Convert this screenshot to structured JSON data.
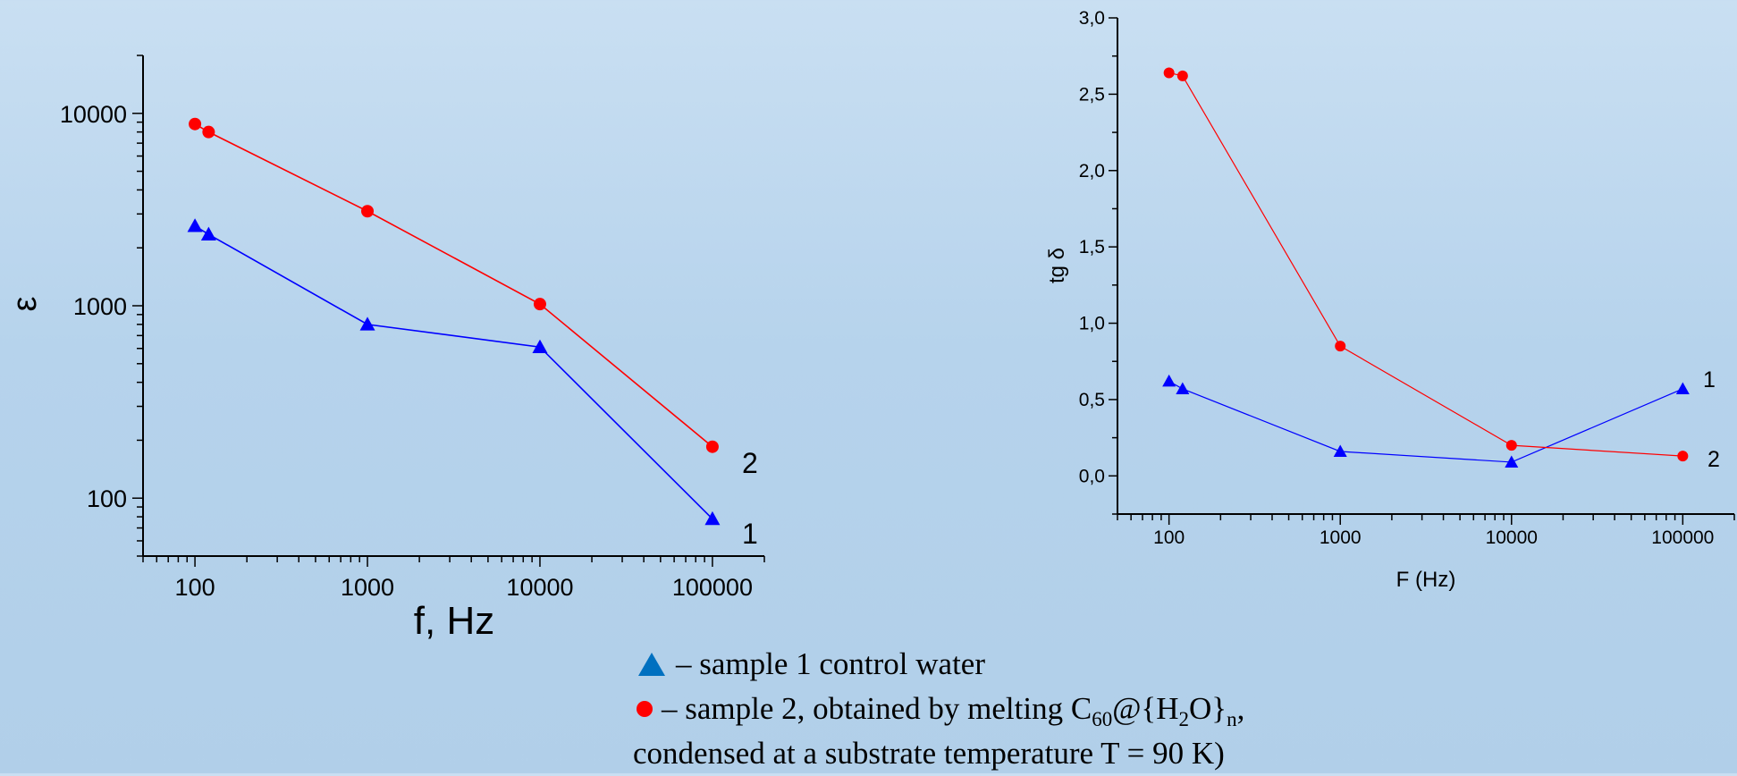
{
  "chart_data": [
    {
      "type": "line",
      "xscale": "log",
      "yscale": "log",
      "xlabel": "f, Hz",
      "ylabel": "ε",
      "xlim": [
        50,
        200000
      ],
      "ylim": [
        50,
        20000
      ],
      "xticks": [
        "100",
        "1000",
        "10000",
        "100000"
      ],
      "yticks": [
        "100",
        "1000",
        "10000"
      ],
      "series": [
        {
          "label": "1",
          "color": "#0000ff",
          "marker": "triangle",
          "x": [
            100,
            120,
            1000,
            10000,
            100000
          ],
          "y": [
            2600,
            2350,
            800,
            610,
            78
          ]
        },
        {
          "label": "2",
          "color": "#ff0000",
          "marker": "circle",
          "x": [
            100,
            120,
            1000,
            10000,
            100000
          ],
          "y": [
            8800,
            8000,
            3100,
            1020,
            185
          ]
        }
      ]
    },
    {
      "type": "line",
      "xscale": "log",
      "xlabel": "F (Hz)",
      "ylabel": "tg δ",
      "xlim": [
        50,
        200000
      ],
      "ylim": [
        -0.25,
        3.0
      ],
      "xticks": [
        "100",
        "1000",
        "10000",
        "100000"
      ],
      "yticks": [
        "0,0",
        "0,5",
        "1,0",
        "1,5",
        "2,0",
        "2,5",
        "3,0"
      ],
      "series": [
        {
          "label": "1",
          "color": "#0000ff",
          "marker": "triangle",
          "x": [
            100,
            120,
            1000,
            10000,
            100000
          ],
          "y": [
            0.62,
            0.57,
            0.16,
            0.09,
            0.57
          ]
        },
        {
          "label": "2",
          "color": "#ff0000",
          "marker": "circle",
          "x": [
            100,
            120,
            1000,
            10000,
            100000
          ],
          "y": [
            2.64,
            2.62,
            0.85,
            0.2,
            0.13
          ]
        }
      ]
    }
  ],
  "legend": {
    "sample1": "– sample 1 control water",
    "sample2_prefix": "– sample 2, obtained by melting C",
    "sample2_sub1": "60",
    "sample2_mid": "@{H",
    "sample2_sub2": "2",
    "sample2_mid2": "O}",
    "sample2_sub3": "n",
    "sample2_suffix": ",",
    "line3": "condensed at a substrate temperature T = 90 K)",
    "marker1_color": "#0070c0",
    "marker2_color": "#ff0000"
  }
}
